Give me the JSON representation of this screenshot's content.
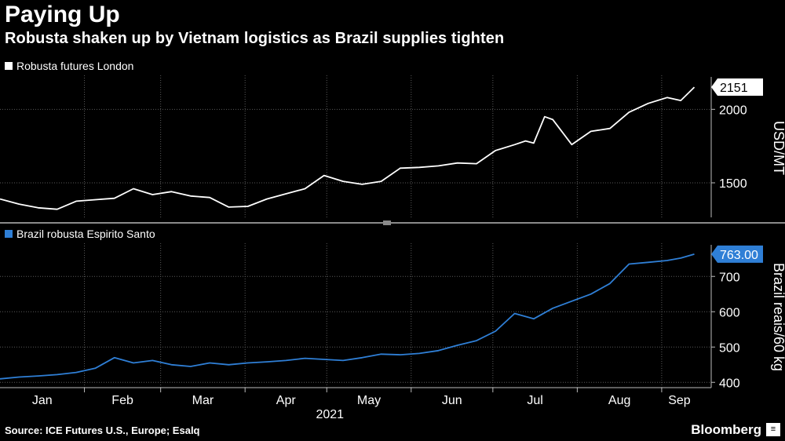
{
  "title": "Paying Up",
  "subtitle": "Robusta shaken up by Vietnam logistics as Brazil supplies tighten",
  "source": "Source: ICE Futures U.S., Europe; Esalq",
  "brand": "Bloomberg",
  "chart_data": [
    {
      "type": "line",
      "legend": "Robusta futures London",
      "color": "#ffffff",
      "ylabel": "USD/MT",
      "ylim": [
        1265,
        2210
      ],
      "yticks": [
        1500,
        2000
      ],
      "last_value": "2151",
      "x": [
        "2021-01-01",
        "2021-01-08",
        "2021-01-15",
        "2021-01-22",
        "2021-01-29",
        "2021-02-05",
        "2021-02-12",
        "2021-02-19",
        "2021-02-26",
        "2021-03-05",
        "2021-03-12",
        "2021-03-19",
        "2021-03-26",
        "2021-04-02",
        "2021-04-09",
        "2021-04-16",
        "2021-04-23",
        "2021-04-30",
        "2021-05-07",
        "2021-05-14",
        "2021-05-21",
        "2021-05-28",
        "2021-06-04",
        "2021-06-11",
        "2021-06-18",
        "2021-06-25",
        "2021-07-02",
        "2021-07-09",
        "2021-07-13",
        "2021-07-16",
        "2021-07-20",
        "2021-07-23",
        "2021-07-30",
        "2021-08-06",
        "2021-08-13",
        "2021-08-20",
        "2021-08-27",
        "2021-09-03",
        "2021-09-08",
        "2021-09-13"
      ],
      "values": [
        1390,
        1355,
        1330,
        1320,
        1375,
        1385,
        1395,
        1460,
        1420,
        1440,
        1410,
        1400,
        1335,
        1340,
        1390,
        1425,
        1460,
        1550,
        1510,
        1490,
        1510,
        1600,
        1605,
        1615,
        1635,
        1630,
        1720,
        1760,
        1785,
        1770,
        1950,
        1930,
        1760,
        1850,
        1870,
        1980,
        2040,
        2080,
        2060,
        2151
      ]
    },
    {
      "type": "line",
      "legend": "Brazil robusta Espirito Santo",
      "color": "#2f7fd6",
      "ylabel": "Brazil reais/60 kg",
      "ylim": [
        385,
        785
      ],
      "yticks": [
        400,
        500,
        600,
        700
      ],
      "last_value": "763.00",
      "x": [
        "2021-01-01",
        "2021-01-08",
        "2021-01-15",
        "2021-01-22",
        "2021-01-29",
        "2021-02-05",
        "2021-02-12",
        "2021-02-19",
        "2021-02-26",
        "2021-03-05",
        "2021-03-12",
        "2021-03-19",
        "2021-03-26",
        "2021-04-02",
        "2021-04-09",
        "2021-04-16",
        "2021-04-23",
        "2021-04-30",
        "2021-05-07",
        "2021-05-14",
        "2021-05-21",
        "2021-05-28",
        "2021-06-04",
        "2021-06-11",
        "2021-06-18",
        "2021-06-25",
        "2021-07-02",
        "2021-07-09",
        "2021-07-16",
        "2021-07-23",
        "2021-07-30",
        "2021-08-06",
        "2021-08-13",
        "2021-08-20",
        "2021-08-27",
        "2021-09-03",
        "2021-09-08",
        "2021-09-13"
      ],
      "values": [
        410,
        415,
        418,
        422,
        428,
        440,
        470,
        455,
        462,
        450,
        445,
        455,
        450,
        455,
        458,
        462,
        468,
        465,
        462,
        470,
        480,
        478,
        482,
        490,
        505,
        518,
        545,
        595,
        580,
        610,
        630,
        650,
        680,
        735,
        740,
        745,
        752,
        763
      ]
    }
  ],
  "x_axis": {
    "months": [
      "Jan",
      "Feb",
      "Mar",
      "Apr",
      "May",
      "Jun",
      "Jul",
      "Aug",
      "Sep"
    ],
    "year_label": "2021"
  }
}
